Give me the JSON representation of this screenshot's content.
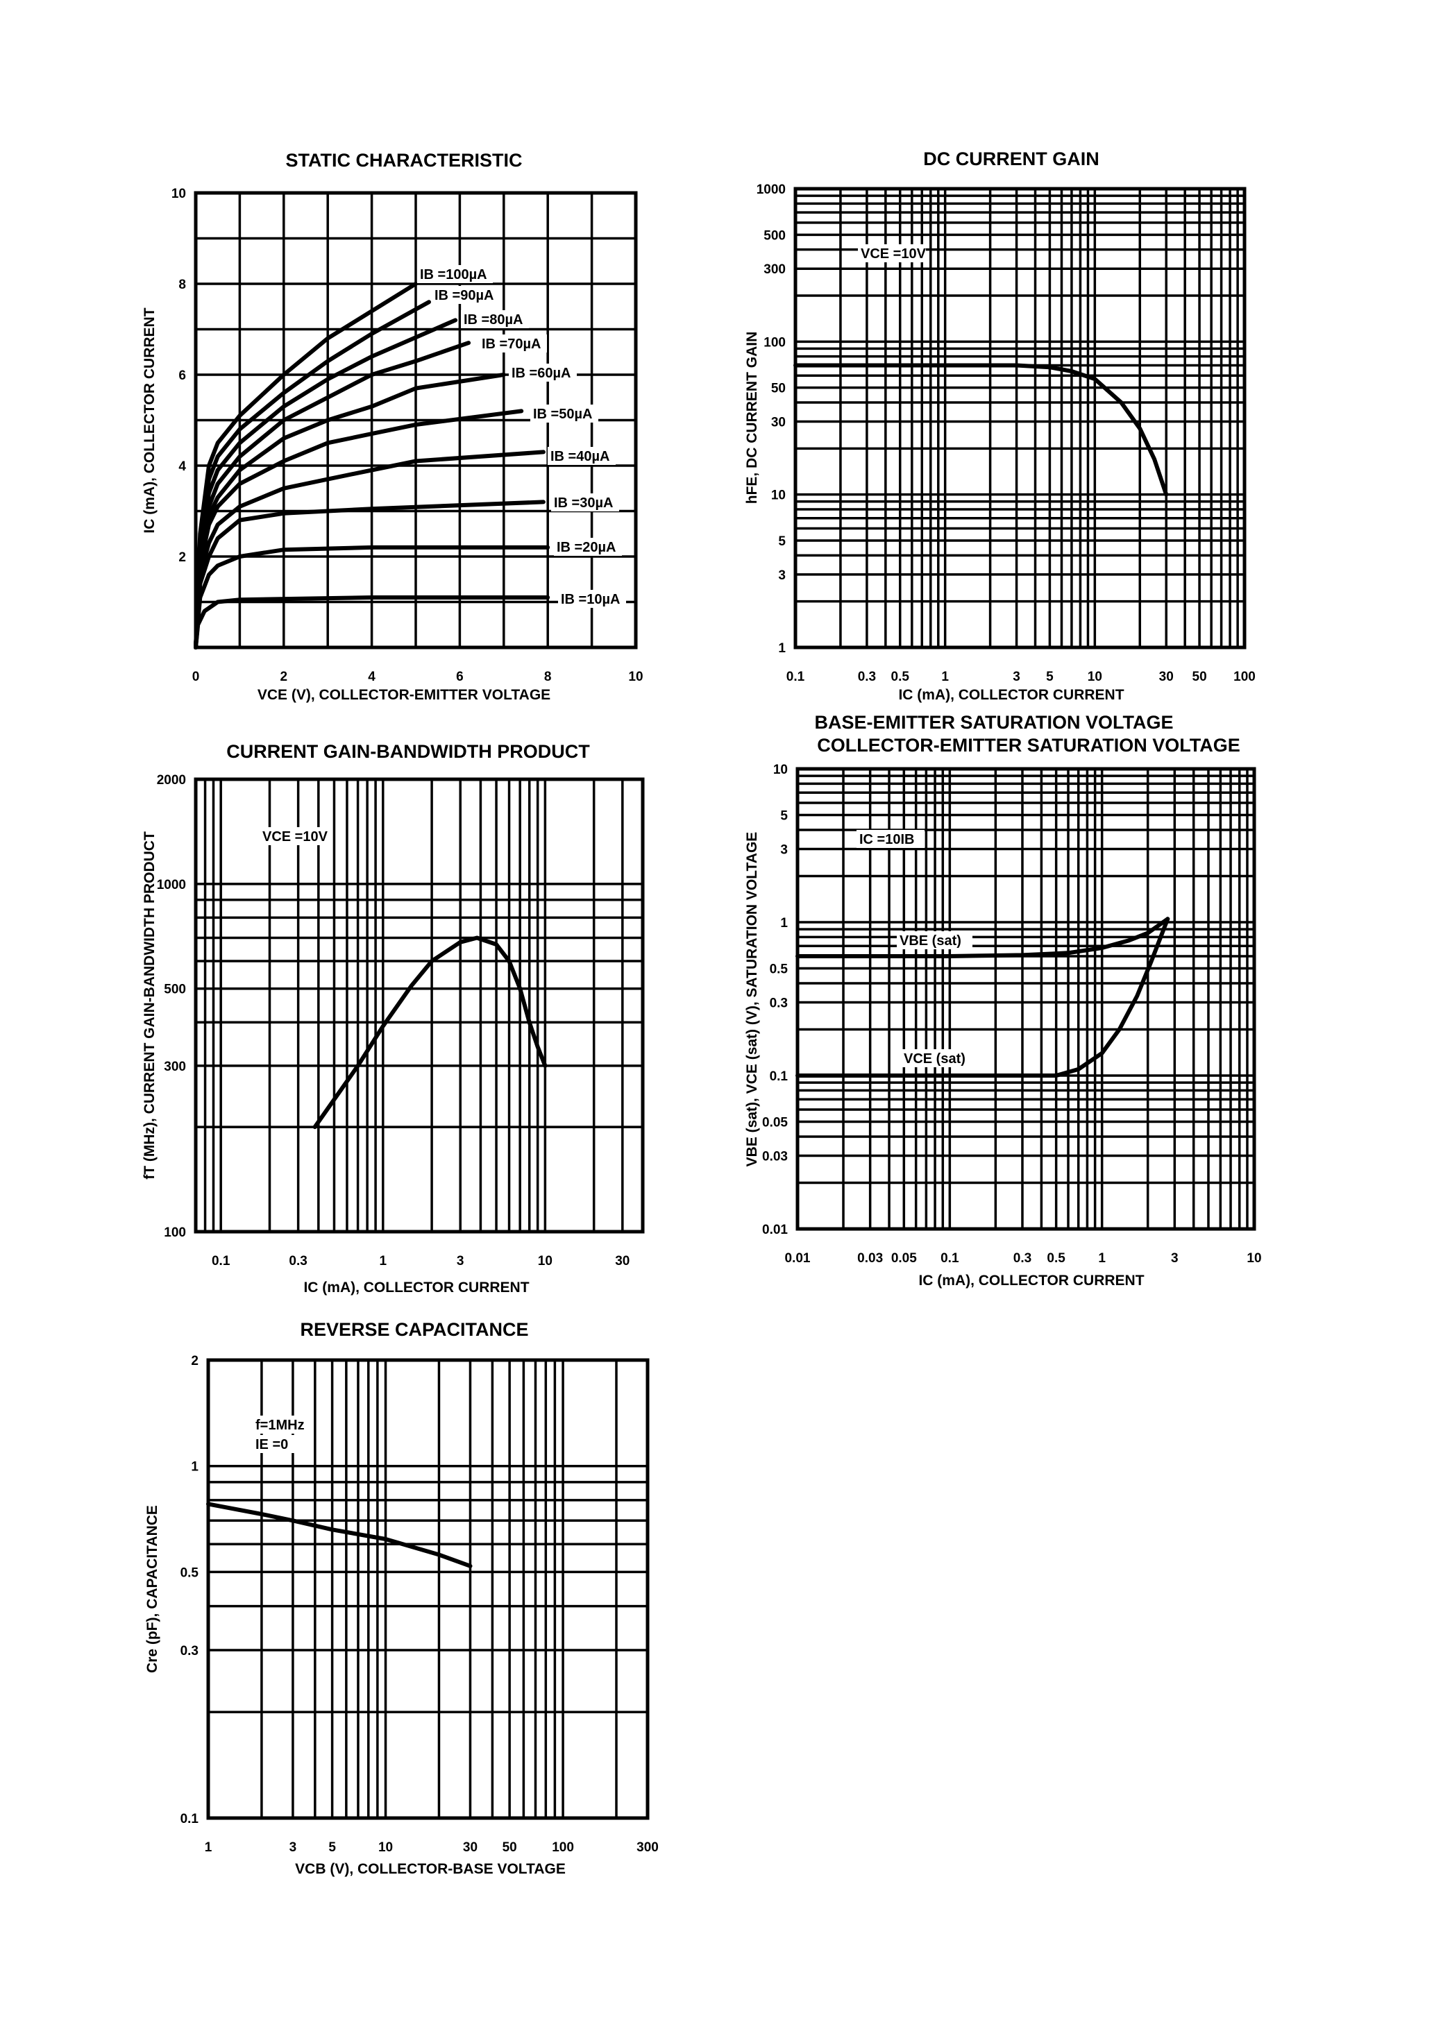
{
  "colors": {
    "ink": "#000000",
    "paper": "#ffffff"
  },
  "chart_data": [
    {
      "type": "line",
      "title": "STATIC CHARACTERISTIC",
      "xlabel": "VCE (V), COLLECTOR-EMITTER VOLTAGE",
      "ylabel": "IC (mA), COLLECTOR CURRENT",
      "xscale": "linear",
      "yscale": "linear",
      "xlim": [
        0,
        10
      ],
      "ylim": [
        0,
        10
      ],
      "grid": true,
      "xticks": [
        "0",
        "2",
        "4",
        "6",
        "8",
        "10"
      ],
      "yticks": [
        "2",
        "4",
        "6",
        "8",
        "10"
      ],
      "series": [
        {
          "name": "IB =100µA",
          "x": [
            0,
            0.1,
            0.3,
            0.5,
            1,
            2,
            3,
            4,
            5
          ],
          "y": [
            0,
            2.5,
            4.0,
            4.5,
            5.1,
            6.0,
            6.8,
            7.4,
            8.0
          ]
        },
        {
          "name": "IB =90µA",
          "x": [
            0,
            0.1,
            0.3,
            0.5,
            1,
            2,
            3,
            4,
            5.3
          ],
          "y": [
            0,
            2.3,
            3.7,
            4.2,
            4.8,
            5.6,
            6.3,
            6.9,
            7.6
          ]
        },
        {
          "name": "IB =80µA",
          "x": [
            0,
            0.1,
            0.3,
            0.5,
            1,
            2,
            3,
            4,
            5.9
          ],
          "y": [
            0,
            2.1,
            3.4,
            3.9,
            4.5,
            5.3,
            5.9,
            6.4,
            7.2
          ]
        },
        {
          "name": "IB =70µA",
          "x": [
            0,
            0.1,
            0.3,
            0.5,
            1,
            2,
            3,
            4,
            5,
            6.2
          ],
          "y": [
            0,
            2.0,
            3.1,
            3.6,
            4.2,
            5.0,
            5.5,
            6.0,
            6.3,
            6.7
          ]
        },
        {
          "name": "IB =60µA",
          "x": [
            0,
            0.1,
            0.3,
            0.5,
            1,
            2,
            3,
            4,
            5,
            7
          ],
          "y": [
            0,
            1.9,
            2.9,
            3.3,
            3.9,
            4.6,
            5.0,
            5.3,
            5.7,
            6.0
          ]
        },
        {
          "name": "IB =50µA",
          "x": [
            0,
            0.1,
            0.3,
            0.5,
            1,
            2,
            3,
            4,
            5,
            7.4
          ],
          "y": [
            0,
            1.8,
            2.7,
            3.1,
            3.6,
            4.1,
            4.5,
            4.7,
            4.9,
            5.2
          ]
        },
        {
          "name": "IB =40µA",
          "x": [
            0,
            0.1,
            0.3,
            0.5,
            1,
            2,
            3,
            4,
            5,
            7.9
          ],
          "y": [
            0,
            1.6,
            2.3,
            2.7,
            3.1,
            3.5,
            3.7,
            3.9,
            4.1,
            4.3
          ]
        },
        {
          "name": "IB =30µA",
          "x": [
            0,
            0.1,
            0.3,
            0.5,
            1,
            2,
            4,
            7.9
          ],
          "y": [
            0,
            1.4,
            2.0,
            2.4,
            2.8,
            2.95,
            3.05,
            3.2
          ]
        },
        {
          "name": "IB =20µA",
          "x": [
            0,
            0.1,
            0.3,
            0.5,
            1,
            2,
            4,
            8
          ],
          "y": [
            0,
            1.1,
            1.6,
            1.8,
            2.0,
            2.15,
            2.2,
            2.2
          ]
        },
        {
          "name": "IB =10µA",
          "x": [
            0,
            0.05,
            0.2,
            0.5,
            1,
            4,
            8
          ],
          "y": [
            0,
            0.5,
            0.8,
            1.0,
            1.05,
            1.1,
            1.1
          ]
        }
      ]
    },
    {
      "type": "line",
      "title": "DC CURRENT GAIN",
      "xlabel": "IC (mA), COLLECTOR CURRENT",
      "ylabel": "hFE, DC CURRENT GAIN",
      "xscale": "log",
      "yscale": "log",
      "xlim": [
        0.1,
        100
      ],
      "ylim": [
        1,
        1000
      ],
      "grid": true,
      "xticks": [
        "0.1",
        "0.3",
        "0.5",
        "1",
        "3",
        "5",
        "10",
        "30",
        "50",
        "100"
      ],
      "yticks": [
        "1",
        "3",
        "5",
        "10",
        "30",
        "50",
        "100",
        "300",
        "500",
        "1000"
      ],
      "annotations": [
        "VCE =10V"
      ],
      "series": [
        {
          "x": [
            0.1,
            1,
            3,
            5,
            7,
            10,
            15,
            20,
            25,
            30
          ],
          "y": [
            70,
            70,
            70,
            68,
            64,
            57,
            40,
            27,
            17,
            10
          ]
        }
      ]
    },
    {
      "type": "line",
      "title": "CURRENT GAIN-BANDWIDTH PRODUCT",
      "xlabel": "IC (mA), COLLECTOR CURRENT",
      "ylabel": "fT (MHz), CURRENT GAIN-BANDWIDTH PRODUCT",
      "xscale": "log",
      "yscale": "log",
      "xlim": [
        0.07,
        40
      ],
      "ylim": [
        100,
        2000
      ],
      "grid": true,
      "xticks": [
        "0.1",
        "0.3",
        "1",
        "3",
        "10",
        "30"
      ],
      "yticks": [
        "100",
        "300",
        "500",
        "1000",
        "2000"
      ],
      "annotations": [
        "VCE =10V"
      ],
      "series": [
        {
          "x": [
            0.38,
            0.7,
            1,
            1.5,
            2,
            3,
            3.8,
            5,
            6,
            7,
            8,
            9,
            10
          ],
          "y": [
            200,
            300,
            390,
            510,
            600,
            680,
            700,
            670,
            600,
            500,
            400,
            340,
            300
          ]
        }
      ]
    },
    {
      "type": "line",
      "title": "BASE-EMITTER SATURATION VOLTAGE",
      "subtitle": "COLLECTOR-EMITTER SATURATION VOLTAGE",
      "xlabel": "IC (mA), COLLECTOR CURRENT",
      "ylabel": "VBE (sat), VCE (sat) (V), SATURATION VOLTAGE",
      "xscale": "log",
      "yscale": "log",
      "xlim": [
        0.01,
        10
      ],
      "ylim": [
        0.01,
        10
      ],
      "grid": true,
      "xticks": [
        "0.01",
        "0.03",
        "0.05",
        "0.1",
        "0.3",
        "0.5",
        "1",
        "3",
        "10"
      ],
      "yticks": [
        "0.01",
        "0.03",
        "0.05",
        "0.1",
        "0.3",
        "0.5",
        "1",
        "3",
        "5",
        "10"
      ],
      "annotations": [
        "IC =10IB"
      ],
      "series": [
        {
          "name": "VBE (sat)",
          "x": [
            0.01,
            0.1,
            0.3,
            0.6,
            1,
            1.5,
            2,
            2.7
          ],
          "y": [
            0.6,
            0.6,
            0.61,
            0.63,
            0.68,
            0.76,
            0.85,
            1.05
          ]
        },
        {
          "name": "VCE (sat)",
          "x": [
            0.01,
            0.1,
            0.5,
            0.7,
            1,
            1.3,
            1.7,
            2.1,
            2.7
          ],
          "y": [
            0.1,
            0.1,
            0.1,
            0.11,
            0.14,
            0.2,
            0.33,
            0.55,
            1.05
          ]
        }
      ]
    },
    {
      "type": "line",
      "title": "REVERSE CAPACITANCE",
      "xlabel": "VCB (V), COLLECTOR-BASE VOLTAGE",
      "ylabel": "Cre (pF), CAPACITANCE",
      "xscale": "log",
      "yscale": "log",
      "xlim": [
        1,
        300
      ],
      "ylim": [
        0.1,
        2
      ],
      "grid": true,
      "xticks": [
        "1",
        "3",
        "5",
        "10",
        "30",
        "50",
        "100",
        "300"
      ],
      "yticks": [
        "0.1",
        "0.3",
        "0.5",
        "1",
        "2"
      ],
      "annotations": [
        "f=1MHz",
        "IE =0"
      ],
      "series": [
        {
          "x": [
            1,
            2,
            3,
            5,
            10,
            20,
            30
          ],
          "y": [
            0.78,
            0.73,
            0.7,
            0.66,
            0.62,
            0.56,
            0.52
          ]
        }
      ]
    }
  ]
}
